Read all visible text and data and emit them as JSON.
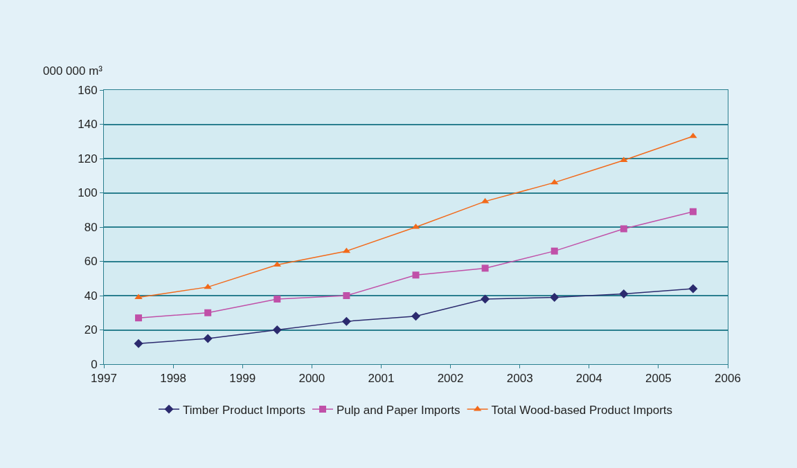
{
  "chart_data": {
    "type": "line",
    "ylabel": "000 000 m³",
    "x": [
      1997.5,
      1998.5,
      1999.5,
      2000.5,
      2001.5,
      2002.5,
      2003.5,
      2004.5,
      2005.5
    ],
    "series": [
      {
        "name": "Timber Product Imports",
        "color": "#2b2a6e",
        "marker": "diamond",
        "values": [
          12,
          15,
          20,
          25,
          28,
          38,
          39,
          41,
          44
        ]
      },
      {
        "name": "Pulp and Paper Imports",
        "color": "#c050a8",
        "marker": "square",
        "values": [
          27,
          30,
          38,
          40,
          52,
          56,
          66,
          79,
          89
        ]
      },
      {
        "name": "Total Wood-based Product Imports",
        "color": "#f26a1b",
        "marker": "triangle",
        "values": [
          39,
          45,
          58,
          66,
          80,
          95,
          106,
          119,
          133
        ]
      }
    ],
    "xlim": [
      1997,
      2006
    ],
    "xticks": [
      1997,
      1998,
      1999,
      2000,
      2001,
      2002,
      2003,
      2004,
      2005,
      2006
    ],
    "ylim": [
      0,
      160
    ],
    "yticks": [
      0,
      20,
      40,
      60,
      80,
      100,
      120,
      140,
      160
    ],
    "grid": "y",
    "legend": "bottom",
    "line_style": "solid"
  }
}
